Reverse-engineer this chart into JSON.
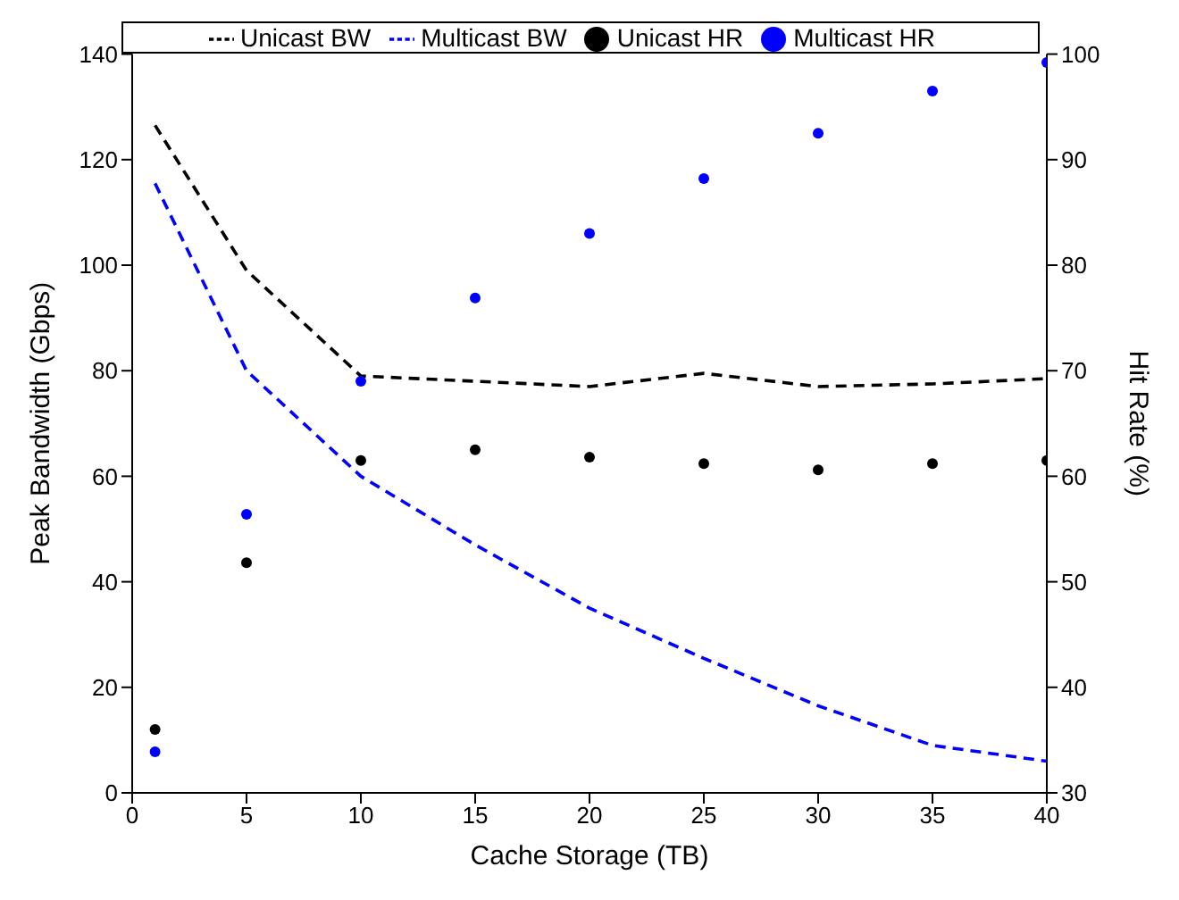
{
  "chart_data": {
    "type": "line",
    "xlabel": "Cache Storage (TB)",
    "ylabel": "Peak Bandwidth (Gbps)",
    "y2label": "Hit Rate (%)",
    "x": [
      1,
      5,
      10,
      15,
      20,
      25,
      30,
      35,
      40
    ],
    "series": [
      {
        "name": "Unicast BW",
        "color": "#000000",
        "line_style": "dashed",
        "values": [
          126.5,
          99,
          79,
          78,
          77,
          79.5,
          77,
          77.5,
          78.5
        ]
      },
      {
        "name": "Multicast BW",
        "color": "#0000ff",
        "line_style": "dashed",
        "values": [
          115.5,
          80,
          60,
          47,
          35,
          25.5,
          16.5,
          9,
          6
        ]
      },
      {
        "name": "Unicast HR",
        "type": "scatter",
        "axis": "y2",
        "color": "#000000",
        "values": [
          36,
          51.8,
          61.5,
          62.5,
          61.8,
          61.2,
          60.6,
          61.2,
          61.5
        ]
      },
      {
        "name": "Multicast HR",
        "type": "scatter",
        "axis": "y2",
        "color": "#0000ff",
        "values": [
          33.9,
          56.4,
          69,
          76.9,
          83,
          88.2,
          92.5,
          96.5,
          99.2
        ]
      }
    ],
    "xlim": [
      0,
      40
    ],
    "xticks": [
      0,
      5,
      10,
      15,
      20,
      25,
      30,
      35,
      40
    ],
    "ylim": [
      0,
      140
    ],
    "yticks": [
      0,
      20,
      40,
      60,
      80,
      100,
      120,
      140
    ],
    "y2lim": [
      30,
      100
    ],
    "y2ticks": [
      30,
      40,
      50,
      60,
      70,
      80,
      90,
      100
    ],
    "grid": false,
    "legend": "top"
  }
}
